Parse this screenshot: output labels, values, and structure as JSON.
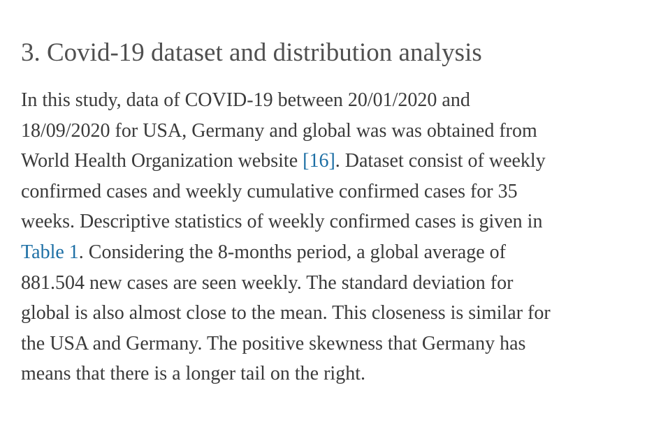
{
  "header": {
    "title": "3. Covid-19 dataset and distribution analysis"
  },
  "paragraph": {
    "lines": [
      [
        "In this study, data of COVID-19 between 20/01/2020 and"
      ],
      [
        "18/09/2020 for USA, Germany and global was was obtained from"
      ],
      [
        "World Health Organization website ",
        "[16]",
        ". Dataset consist of weekly"
      ],
      [
        "confirmed cases and weekly cumulative confirmed cases for 35"
      ],
      [
        "weeks. Descriptive statistics of weekly confirmed cases is given in"
      ],
      [
        "Table 1",
        ". Considering the 8-months period, a global average of"
      ],
      [
        "881.504 new cases are seen weekly. The standard deviation for"
      ],
      [
        "global is also almost close to the mean. This closeness is similar for"
      ],
      [
        "the USA and Germany. The positive skewness that Germany has"
      ],
      [
        "means that there is a longer tail on the right."
      ]
    ]
  }
}
